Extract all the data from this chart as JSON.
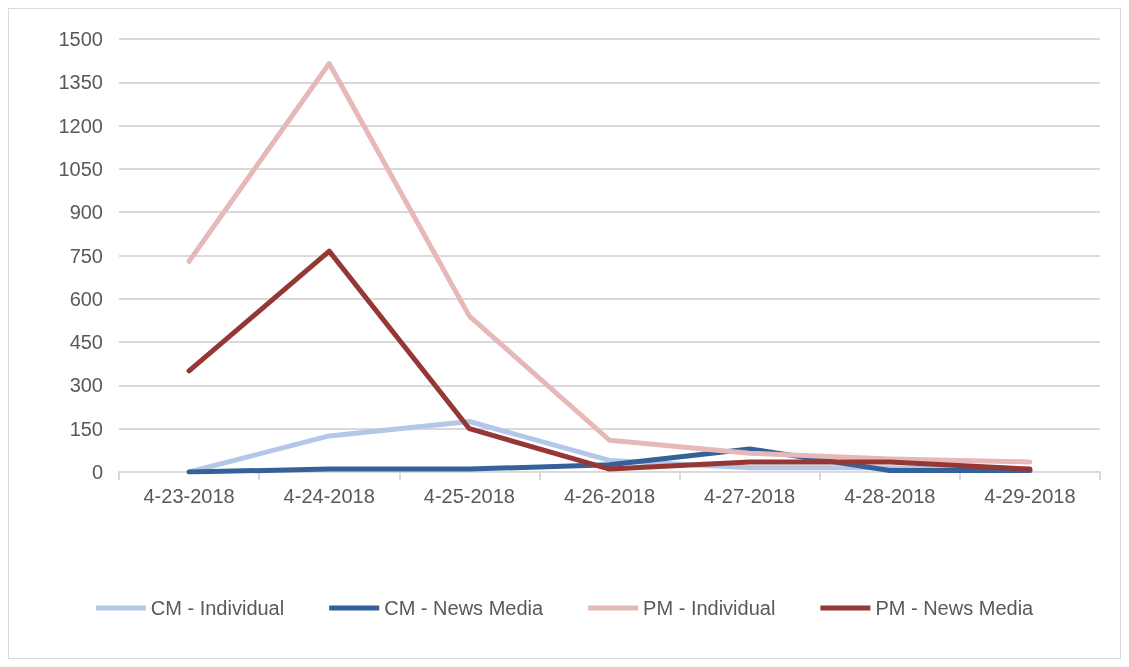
{
  "chart_data": {
    "type": "line",
    "categories": [
      "4-23-2018",
      "4-24-2018",
      "4-25-2018",
      "4-26-2018",
      "4-27-2018",
      "4-28-2018",
      "4-29-2018"
    ],
    "series": [
      {
        "name": "CM - Individual",
        "color": "#b4c7e7",
        "values": [
          0,
          125,
          175,
          40,
          15,
          15,
          5
        ]
      },
      {
        "name": "CM - News Media",
        "color": "#356199",
        "values": [
          0,
          10,
          10,
          25,
          80,
          5,
          5
        ]
      },
      {
        "name": "PM - Individual",
        "color": "#e6b9b8",
        "values": [
          730,
          1415,
          540,
          110,
          65,
          45,
          35
        ]
      },
      {
        "name": "PM - News Media",
        "color": "#953735",
        "values": [
          350,
          765,
          150,
          10,
          35,
          35,
          10
        ]
      }
    ],
    "ylim": [
      0,
      1500
    ],
    "yticks": [
      0,
      150,
      300,
      450,
      600,
      750,
      900,
      1050,
      1200,
      1350,
      1500
    ],
    "grid": "y",
    "legend": "bottom",
    "marker": "none",
    "line_style": "solid"
  }
}
